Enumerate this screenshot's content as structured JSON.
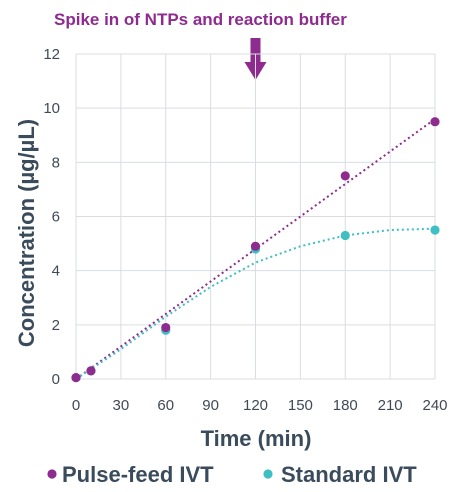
{
  "chart_data": {
    "type": "scatter",
    "annotation": "Spike in of NTPs and reaction buffer",
    "annotation_x": 120,
    "xlabel": "Time (min)",
    "ylabel": "Concentration (µg/µL)",
    "xlim": [
      0,
      240
    ],
    "ylim": [
      0,
      12
    ],
    "xticks": [
      0,
      30,
      60,
      90,
      120,
      150,
      180,
      210,
      240
    ],
    "yticks": [
      0,
      2,
      4,
      6,
      8,
      10,
      12
    ],
    "grid": true,
    "legend_position": "bottom",
    "series": [
      {
        "name": "Pulse-feed IVT",
        "color": "#8e2b8e",
        "x": [
          0,
          10,
          60,
          120,
          180,
          240
        ],
        "y": [
          0.05,
          0.3,
          1.9,
          4.9,
          7.5,
          9.5
        ],
        "trend": [
          [
            0,
            0.0
          ],
          [
            240,
            9.6
          ]
        ]
      },
      {
        "name": "Standard IVT",
        "color": "#3dbfc4",
        "x": [
          0,
          10,
          60,
          120,
          180,
          240
        ],
        "y": [
          0.05,
          0.3,
          1.8,
          4.8,
          5.3,
          5.5
        ],
        "trend": [
          [
            0,
            0.0
          ],
          [
            30,
            1.1
          ],
          [
            60,
            2.3
          ],
          [
            90,
            3.4
          ],
          [
            120,
            4.3
          ],
          [
            150,
            4.9
          ],
          [
            180,
            5.3
          ],
          [
            210,
            5.5
          ],
          [
            240,
            5.55
          ]
        ]
      }
    ]
  }
}
